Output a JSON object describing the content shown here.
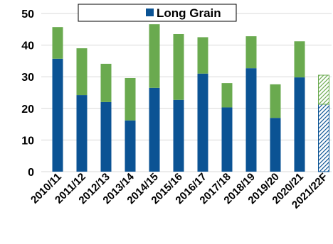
{
  "chart_data": {
    "type": "bar",
    "stacked": true,
    "categories": [
      "2010/11",
      "2011/12",
      "2012/13",
      "2013/14",
      "2014/15",
      "2015/16",
      "2016/17",
      "2017/18",
      "2018/19",
      "2019/20",
      "2020/21",
      "2021/22F"
    ],
    "series": [
      {
        "name": "Long Grain",
        "color": "#0b5394",
        "values": [
          35.7,
          24.2,
          22.0,
          16.2,
          26.5,
          22.7,
          31.0,
          20.3,
          32.7,
          17.0,
          29.8,
          21.3
        ]
      },
      {
        "name": "",
        "color": "#6aaa4f",
        "values": [
          10.0,
          14.8,
          12.1,
          13.4,
          20.1,
          20.8,
          11.5,
          7.7,
          10.1,
          10.6,
          11.4,
          9.2
        ]
      }
    ],
    "forecast_category": "2021/22F",
    "forecast_style": "hatched",
    "yticks": [
      0,
      10,
      20,
      30,
      40,
      50
    ],
    "ylim": [
      0,
      50
    ],
    "legend": {
      "label": "Long Grain",
      "placement": "top-center"
    },
    "grid": "horizontal",
    "title": "",
    "xlabel": "",
    "ylabel": ""
  }
}
